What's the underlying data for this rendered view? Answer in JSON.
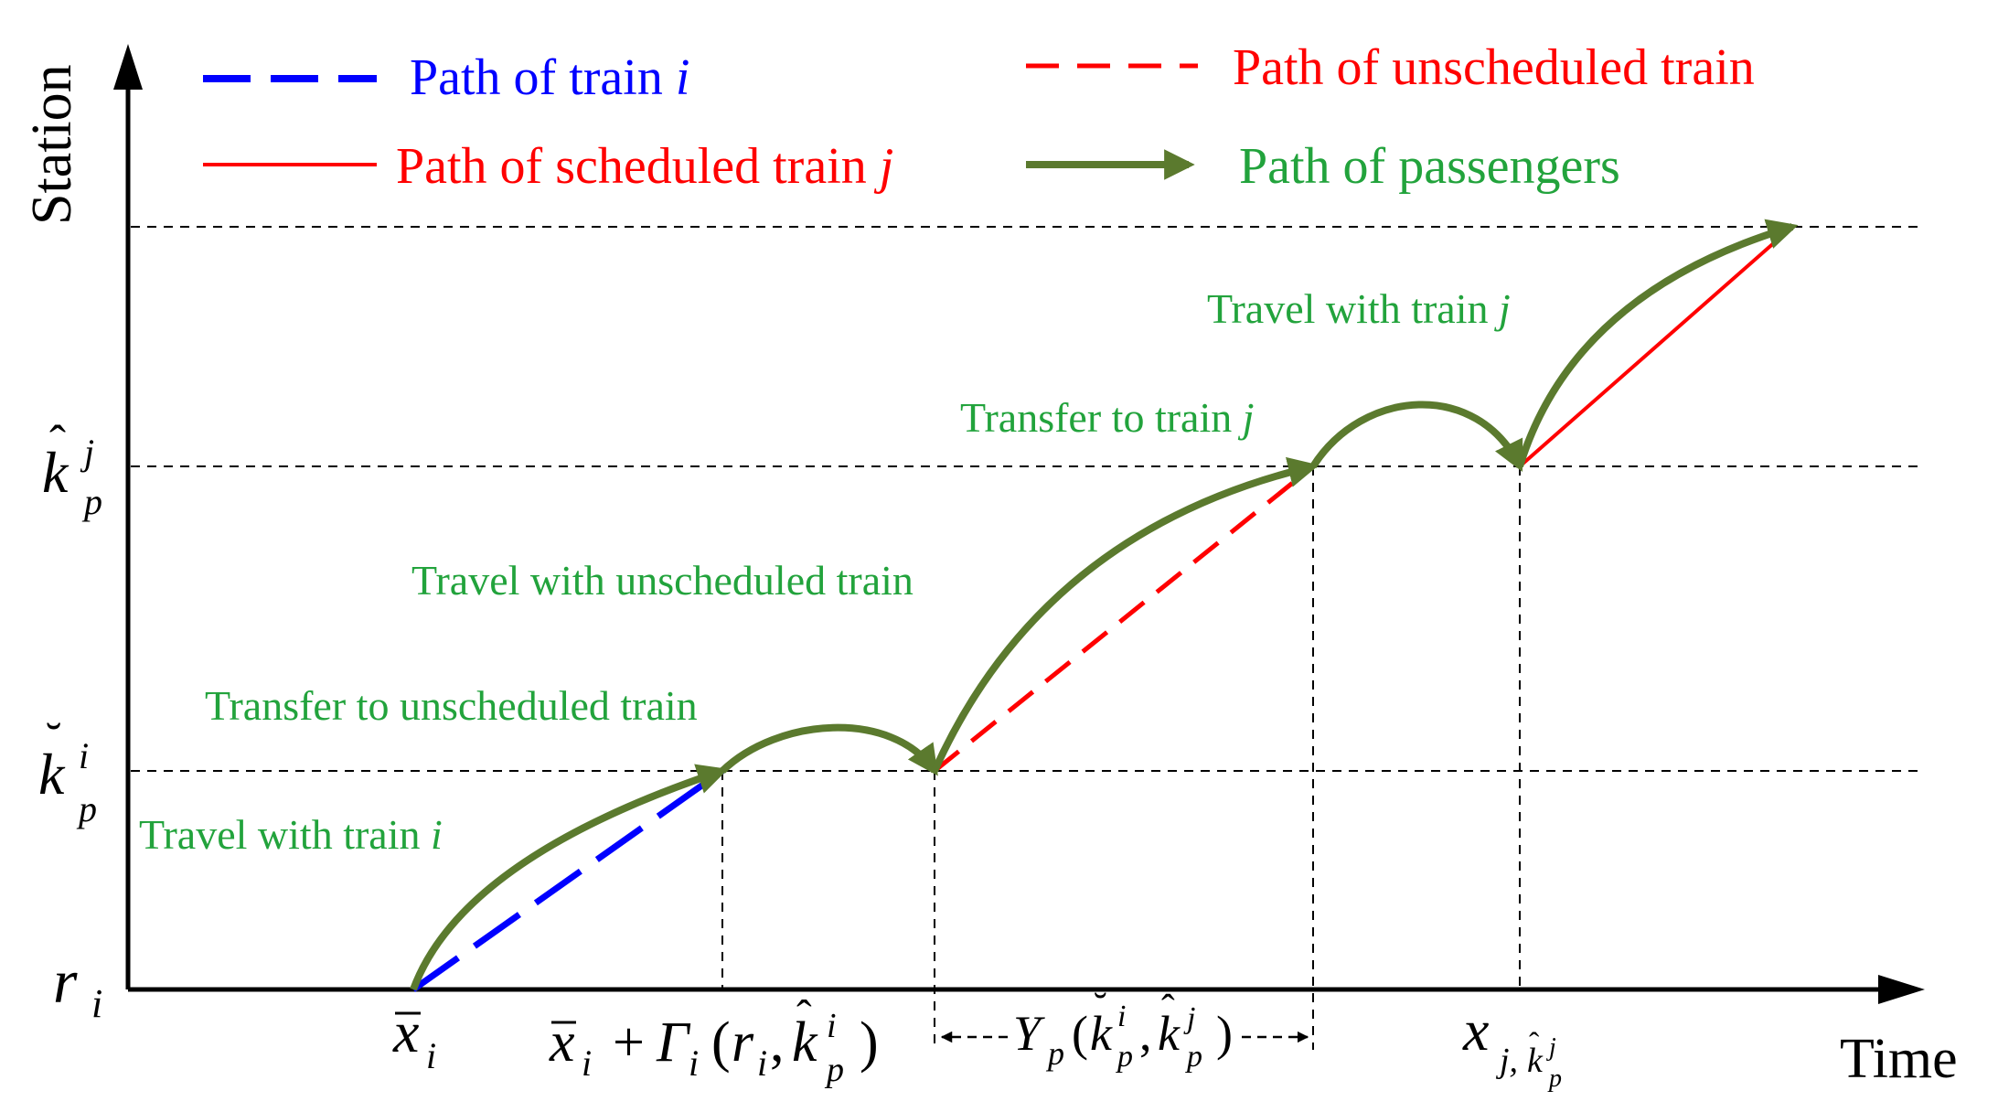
{
  "axes": {
    "y_label": "Station",
    "x_label": "Time"
  },
  "legend": {
    "train_i": {
      "text": "Path of train ",
      "var": "i"
    },
    "unscheduled": {
      "text": "Path of unscheduled train"
    },
    "scheduled": {
      "text": "Path of scheduled train ",
      "var": "j"
    },
    "passengers": {
      "text": "Path of passengers"
    }
  },
  "annotations": {
    "travel_i": {
      "text": "Travel with train ",
      "var": "i"
    },
    "transfer_unsched": "Transfer to unscheduled train",
    "travel_unsched": "Travel with unscheduled train",
    "transfer_j": {
      "text": "Transfer to train ",
      "var": "j"
    },
    "travel_j": {
      "text": "Travel with train ",
      "var": "j"
    }
  },
  "y_ticks": {
    "r_i": {
      "base": "r",
      "sub": "i"
    },
    "k_breve": {
      "base": "k",
      "accent": "˘",
      "sup": "i",
      "sub": "p"
    },
    "k_hat": {
      "base": "k",
      "accent": "ˆ",
      "sup": "j",
      "sub": "p"
    }
  },
  "x_ticks": {
    "xbar_i": {
      "base": "x",
      "sub": "i"
    },
    "sum": {
      "base": "x",
      "sub_i": "i",
      "plus": "+",
      "gamma": "Γ",
      "open": "(",
      "r": "r",
      "comma": ",",
      "k": "k",
      "k_sup": "i",
      "k_sub": "p",
      "close": ")"
    },
    "Y": {
      "arrow_left": "←---",
      "base": "Y",
      "sub": "p",
      "open": "(",
      "k1": "k",
      "k1_sup": "i",
      "k1_sub": "p",
      "comma": ",",
      "k2": "k",
      "k2_sup": "j",
      "k2_sub": "p",
      "close": ")",
      "arrow_right": "---→"
    },
    "x_j": {
      "base": "x",
      "sub": "j,",
      "k": "k",
      "k_sup": "j",
      "k_sub": "p"
    }
  },
  "colors": {
    "train_i": "#0000ff",
    "train_j": "#ff0000",
    "passengers": "#5b7a2e",
    "annotation": "#22a33c",
    "axis": "#000000"
  }
}
